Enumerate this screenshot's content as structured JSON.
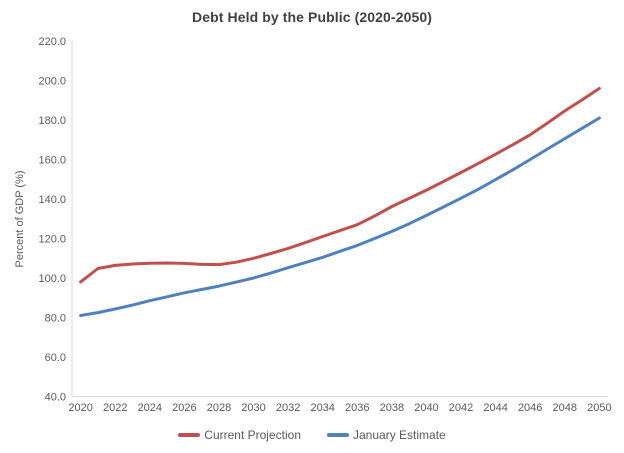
{
  "chart_data": {
    "type": "line",
    "title": "Debt Held by the Public (2020-2050)",
    "xlabel": "",
    "ylabel": "Percent of GDP (%)",
    "ylim": [
      40,
      220
    ],
    "y_ticks": [
      40,
      60,
      80,
      100,
      120,
      140,
      160,
      180,
      200,
      220
    ],
    "y_tick_format": "one_decimal",
    "x": [
      2020,
      2021,
      2022,
      2023,
      2024,
      2025,
      2026,
      2027,
      2028,
      2029,
      2030,
      2031,
      2032,
      2033,
      2034,
      2035,
      2036,
      2037,
      2038,
      2039,
      2040,
      2041,
      2042,
      2043,
      2044,
      2045,
      2046,
      2047,
      2048,
      2049,
      2050
    ],
    "x_tick_labels": [
      "2020",
      "2022",
      "2024",
      "2026",
      "2028",
      "2030",
      "2032",
      "2034",
      "2036",
      "2038",
      "2040",
      "2042",
      "2044",
      "2046",
      "2048",
      "2050"
    ],
    "grid": false,
    "legend_position": "bottom",
    "series": [
      {
        "name": "Current Projection",
        "color": "#C0504D",
        "values": [
          98,
          104.8,
          106.4,
          107.1,
          107.5,
          107.6,
          107.4,
          106.9,
          106.8,
          108,
          110,
          112.4,
          115,
          117.9,
          121,
          124,
          127,
          131.4,
          136.2,
          140.3,
          144.5,
          148.9,
          153.4,
          158,
          162.7,
          167.5,
          172.5,
          178.5,
          184.6,
          190.2,
          196
        ]
      },
      {
        "name": "January Estimate",
        "color": "#4F81BD",
        "values": [
          81,
          82.5,
          84.3,
          86.3,
          88.5,
          90.5,
          92.5,
          94.2,
          95.9,
          97.9,
          100,
          102.5,
          105.2,
          107.8,
          110.5,
          113.5,
          116.5,
          120,
          123.6,
          127.5,
          131.7,
          136,
          140.4,
          144.9,
          149.8,
          154.8,
          160,
          165.3,
          170.6,
          175.8,
          181
        ]
      }
    ]
  },
  "colors": {
    "axis_line": "#D9D9D9",
    "tick_text": "#595959",
    "title_text": "#404040",
    "legend_text": "#595959",
    "background": "#FFFFFF"
  }
}
